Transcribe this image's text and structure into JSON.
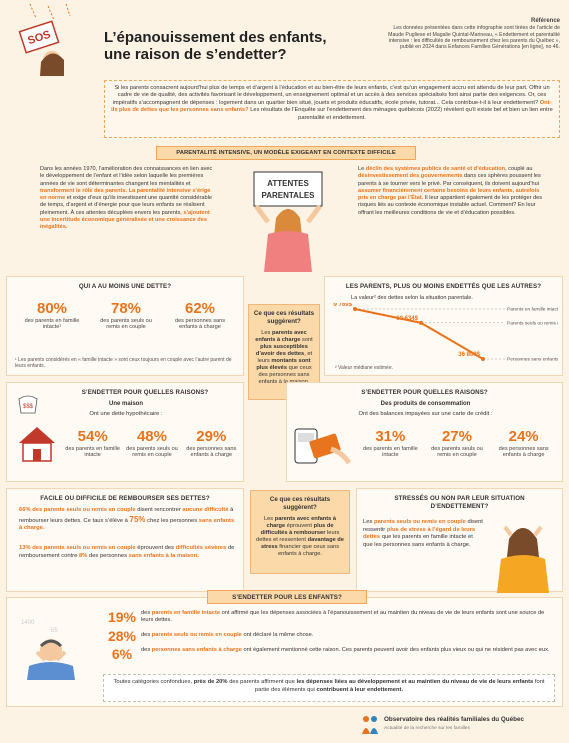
{
  "title": {
    "line1": "L’épanouissement des enfants,",
    "line2": "une raison de s’endetter?"
  },
  "sos_sign": "SOS",
  "reference": {
    "heading": "Référence",
    "text": "Les données présentées dans cette infographie sont tirées de l’article de Maude Pugliese et Magalie Quintal-Marineau, « Endettement et parentalité intensive : les difficultés de remboursement chez les parents du Québec », publié en 2024 dans Enfances Familles Générations [en ligne], no 46."
  },
  "intro": {
    "p1": "Si les parents consacrent aujourd’hui plus de temps et d’argent à l’éducation et au bien-être de leurs enfants, c’est qu’un engagement accru est attendu de leur part. Offrir un cadre de vie de qualité, des activités favorisant le développement, un enseignement optimal et un accès à des services spécialisés font ainsi partie des exigences. Or, ces impératifs s’accompagnent de dépenses : logement dans un quartier bien situé, jouets et produits éducatifs, école privée, tutorat... Cela contribue-t-il à leur endettement?",
    "p1_highlight": "Ont-ils plus de dettes que les personnes sans enfants?",
    "p2": "Les résultats de l’Enquête sur l’endettement des ménages québécois (2022) révèlent qu’il existe bel et bien un lien entre parentalité et endettement."
  },
  "intensive": {
    "heading": "PARENTALITÉ INTENSIVE, UN MODÈLE EXIGEANT EN CONTEXTE DIFFICILE",
    "left_a": "Dans les années 1970, l’amélioration des connaissances en lien avec le développement de l’enfant et l’idée selon laquelle les premières années de vie sont déterminantes changent les mentalités et",
    "left_hl1": "transforment le rôle des parents. La parentalité intensive s’érige en norme",
    "left_b": "et exige d’eux qu’ils investissent une quantité considérable de temps, d’argent et d’énergie pour que leurs enfants se réalisent pleinement. À ces attentes décuplées envers les parents,",
    "left_hl2": "s’ajoutent une incertitude économique généralisée et une croissance des inégalités.",
    "sign_line1": "ATTENTES",
    "sign_line2": "PARENTALES",
    "right_a": "Le",
    "right_hl1": "déclin des systèmes publics de santé et d’éducation",
    "right_b": ", couplé au",
    "right_hl2": "désinvestissement des gouvernements",
    "right_c": "dans ces sphères poussent les parents à se tourner vers le privé. Par conséquent, ils doivent aujourd’hui",
    "right_hl3": "assumer financièrement certains besoins de leurs enfants, autrefois pris en charge par l’État.",
    "right_d": "Il leur appartient également de les protéger des risques liés au contexte économique instable actuel. Comment? En leur offrant les meilleures conditions de vie et d’éducation possibles."
  },
  "debt_one": {
    "heading": "QUI A AU MOINS UNE DETTE?",
    "stats": [
      {
        "value": "80%",
        "label": "des parents en famille intacte¹"
      },
      {
        "value": "78%",
        "label": "des parents seuls ou remis en couple"
      },
      {
        "value": "62%",
        "label": "des personnes sans enfants à charge"
      }
    ],
    "footnote": "¹ Les parents considérés en « famille intacte » sont ceux toujours en couple avec l’autre parent de leurs enfants."
  },
  "debt_more": {
    "heading": "LES PARENTS, PLUS OU MOINS ENDETTÉS QUE LES AUTRES?",
    "subtitle": "La valeur² des dettes selon la situation parentale.",
    "footnote": "² Valeur médiane estimée."
  },
  "chart_data": {
    "type": "line",
    "points": [
      {
        "value": 69769,
        "label": "69 769$",
        "group": "Parents en famille intacte"
      },
      {
        "value": 60634,
        "label": "60 634$",
        "group": "Parents seuls ou remis en couple"
      },
      {
        "value": 36800,
        "label": "36 800$",
        "group": "Personnes sans enfants à charge"
      }
    ]
  },
  "suggest1": {
    "title": "Ce que ces résultats suggèrent?",
    "a": "Les",
    "hl1": "parents avec enfants à charge",
    "b": "sont",
    "hl2": "plus susceptibles d’avoir des dettes",
    "c": ", et leurs",
    "hl3": "montants sont plus élevés",
    "d": "que ceux des personnes sans enfants à la maison."
  },
  "reasons_left": {
    "heading": "S’ENDETTER POUR QUELLES RAISONS?",
    "sub": "Une maison",
    "sub2": "Ont une dette hypothécaire :",
    "stats": [
      {
        "value": "54%",
        "label": "des parents en famille intacte"
      },
      {
        "value": "48%",
        "label": "des parents seuls ou remis en couple"
      },
      {
        "value": "29%",
        "label": "des personnes sans enfants à charge"
      }
    ],
    "bag": "$$$"
  },
  "reasons_right": {
    "heading": "S’ENDETTER POUR QUELLES RAISONS?",
    "sub": "Des produits de consommation",
    "sub2": "Ont des balances impayées sur une carte de crédit :",
    "stats": [
      {
        "value": "31%",
        "label": "des parents en famille intacte"
      },
      {
        "value": "27%",
        "label": "des parents seuls ou remis en couple"
      },
      {
        "value": "24%",
        "label": "des personnes sans enfants à charge"
      }
    ]
  },
  "repay": {
    "heading": "FACILE OU DIFFICILE DE REMBOURSER SES DETTES?",
    "p1_hl1": "66% des parents seuls ou remis en couple",
    "p1_a": "disent rencontrer",
    "p1_hl2": "aucune difficulté",
    "p1_b": "à rembourser leurs dettes. Ce taux s’élève à",
    "p1_hl3": "75%",
    "p1_c": "chez les personnes",
    "p1_hl4": "sans enfants à charge.",
    "p2_hl1": "13% des parents seuls ou remis en couple",
    "p2_a": "éprouvent des",
    "p2_hl2": "difficultés sévères",
    "p2_b": "de remboursement contre",
    "p2_hl3": "8%",
    "p2_c": "des personnes",
    "p2_hl4": "sans enfants à la maison."
  },
  "suggest2": {
    "title": "Ce que ces résultats suggèrent?",
    "a": "Les",
    "hl1": "parents avec enfants à charge",
    "b": "éprouvent",
    "hl2": "plus de difficultés à rembourser",
    "c": "leurs dettes et ressentent",
    "hl3": "davantage de stress",
    "d": "financier que ceux sans enfants à charge."
  },
  "stress": {
    "heading": "STRESSÉS OU NON PAR LEUR SITUATION D’ENDETTEMENT?",
    "a": "Les",
    "hl1": "parents seuls ou remis en couple",
    "b": "disent ressentir",
    "hl2": "plus de stress à l’égard de leurs dettes",
    "c": "que les parents en famille intacte et que les personnes sans enfants à charge."
  },
  "children": {
    "heading": "S’ENDETTER POUR LES ENFANTS?",
    "rows": [
      {
        "value": "19%",
        "a": "des",
        "hl": "parents en famille intacte",
        "b": "ont affirmé que les dépenses associées à l’épanouissement et au maintien du niveau de vie de leurs enfants sont une source de leurs dettes."
      },
      {
        "value": "28%",
        "a": "des",
        "hl": "parents seuls ou remis en couple",
        "b": "ont déclaré la même chose."
      },
      {
        "value": "6%",
        "a": "des",
        "hl": "personnes sans enfants à charge",
        "b": "ont également mentionné cette raison. Ces parents peuvent avoir des enfants plus vieux ou qui ne résident pas avec eux."
      }
    ],
    "summary_a": "Toutes catégories confondues,",
    "summary_hl1": "près de 20%",
    "summary_b": "des parents affirment que",
    "summary_hl2": "les dépenses liées au développement et au maintien du niveau de vie de leurs enfants",
    "summary_c": "font partie des éléments qui",
    "summary_hl3": "contribuent à leur endettement."
  },
  "footer": {
    "org": "Observatoire des réalités familiales du Québec",
    "tagline": "Actualité de la recherche sur les familles"
  },
  "colors": {
    "accent": "#e8741e",
    "panel": "#fbd9a8",
    "background": "#fdf3e4"
  }
}
